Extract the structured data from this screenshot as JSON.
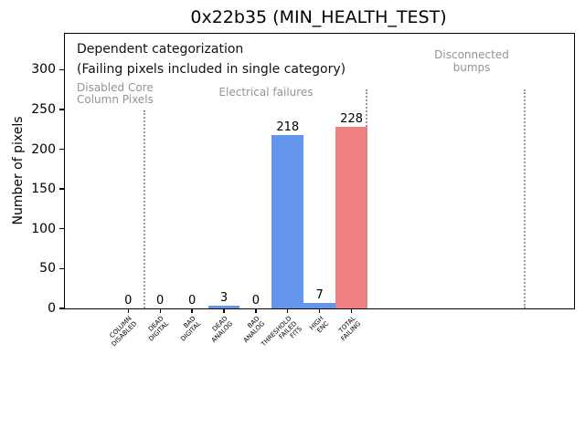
{
  "chart_data": {
    "type": "bar",
    "title": "0x22b35 (MIN_HEALTH_TEST)",
    "ylabel": "Number of pixels",
    "xlabel": "",
    "categories": [
      "COLUMN\nDISABLED",
      "DEAD\nDIGITAL",
      "BAD\nDIGITAL",
      "DEAD\nANALOG",
      "BAD\nANALOG",
      "THRESHOLD\nFAILED\nFITS",
      "HIGH\nENC",
      "TOTAL\nFAILING"
    ],
    "values": [
      0,
      0,
      0,
      3,
      0,
      218,
      7,
      228
    ],
    "bar_colors": [
      "#6495ED",
      "#6495ED",
      "#6495ED",
      "#6495ED",
      "#6495ED",
      "#6495ED",
      "#6495ED",
      "#F08080"
    ],
    "value_labels": [
      "0",
      "0",
      "0",
      "3",
      "0",
      "218",
      "7",
      "228"
    ],
    "yticks": [
      0,
      50,
      100,
      150,
      200,
      250,
      300
    ],
    "ylim": [
      0,
      345
    ],
    "grid": false,
    "legend": null,
    "group_separators": [
      {
        "x": 87,
        "top": 84
      },
      {
        "x": 330,
        "top": 61
      },
      {
        "x": 503,
        "top": 61
      }
    ],
    "annotations": {
      "dependent_line1": "Dependent categorization",
      "dependent_line2": "(Failing pixels included in single category)",
      "disabled_core_line1": "Disabled Core",
      "disabled_core_line2": "Column Pixels",
      "electrical": "Electrical failures",
      "disconnected_line1": "Disconnected",
      "disconnected_line2": "bumps"
    },
    "colors": {
      "bar_blue": "#6495ED",
      "bar_red": "#F08080",
      "annotation_gray": "#949494",
      "separator_gray": "#999999"
    }
  }
}
